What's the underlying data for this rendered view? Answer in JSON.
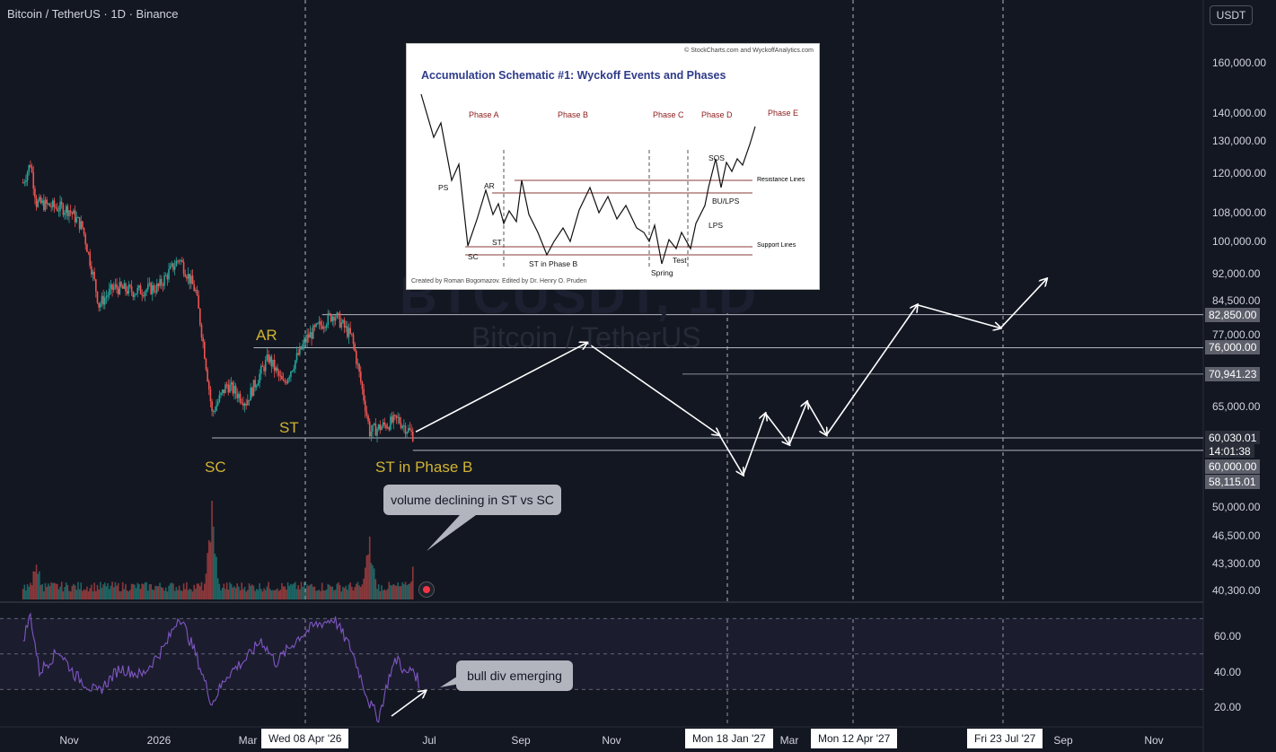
{
  "header": {
    "title": "Bitcoin / TetherUS · 1D · Binance",
    "unit_button": "USDT"
  },
  "watermark": {
    "symbol": "BTCUSDT, 1D",
    "name": "Bitcoin / TetherUS"
  },
  "inset": {
    "credit_top": "© StockCharts.com and WyckoffAnalytics.com",
    "title": "Accumulation Schematic #1: Wyckoff Events and Phases",
    "credit_bottom": "Created by Roman Bogomazov. Edited by Dr. Henry O. Pruden",
    "phases": [
      "Phase A",
      "Phase B",
      "Phase C",
      "Phase D",
      "Phase E"
    ],
    "events": {
      "ps": "PS",
      "sc": "SC",
      "ar": "AR",
      "st": "ST",
      "st_b": "ST in Phase B",
      "spring": "Spring",
      "test": "Test",
      "lps": "LPS",
      "sos": "SOS",
      "bu_lps": "BU/LPS"
    },
    "resistance": "Resistance Lines",
    "support": "Support Lines"
  },
  "annotations": {
    "ar": "AR",
    "st": "ST",
    "sc": "SC",
    "st_phase_b": "ST in Phase B",
    "volume_note": "volume declining in ST vs SC",
    "rsi_note": "bull div emerging"
  },
  "price_tags": {
    "p82850": "82,850.00",
    "p76000": "76,000.00",
    "p70941": "70,941.23",
    "p60030": "60,030.01",
    "countdown": "14:01:38",
    "p60000": "60,000.00",
    "p58115": "58,115.01"
  },
  "colors": {
    "background": "#131722",
    "candle_up": "#26a69a",
    "candle_down": "#ef5350",
    "label_gold": "#d1b431",
    "rsi_line": "#7e57c2",
    "callout_bg": "#b2b5be"
  },
  "chart_data": [
    {
      "type": "candlestick",
      "title": "Bitcoin / TetherUS · 1D · Binance",
      "scale": "log",
      "ylim": [
        38000,
        175000
      ],
      "y_ticks": [
        "160,000.00",
        "140,000.00",
        "130,000.00",
        "120,000.00",
        "108,000.00",
        "100,000.00",
        "92,000.00",
        "84,500.00",
        "77,000.00",
        "65,000.00",
        "50,000.00",
        "46,500.00",
        "43,300.00",
        "40,300.00"
      ],
      "x_ticks": [
        "Nov",
        "2026",
        "Mar",
        "Jul",
        "Sep",
        "Nov",
        "Mar",
        "Sep",
        "Nov"
      ],
      "highlighted_dates": [
        "Wed 08 Apr '26",
        "Mon 18 Jan '27",
        "Mon 12 Apr '27",
        "Fri 23 Jul '27"
      ],
      "levels": [
        82850,
        76000,
        70941.23,
        60030.01,
        60000,
        58115.01
      ],
      "close_path": [
        [
          "2025-10-01",
          117000
        ],
        [
          "2025-10-06",
          123000
        ],
        [
          "2025-10-10",
          111000
        ],
        [
          "2025-10-20",
          110000
        ],
        [
          "2025-11-01",
          109000
        ],
        [
          "2025-11-10",
          104000
        ],
        [
          "2025-11-21",
          85000
        ],
        [
          "2025-12-01",
          89000
        ],
        [
          "2025-12-15",
          88000
        ],
        [
          "2025-12-31",
          89000
        ],
        [
          "2026-01-14",
          96000
        ],
        [
          "2026-01-25",
          88000
        ],
        [
          "2026-02-05",
          64000
        ],
        [
          "2026-02-15",
          69000
        ],
        [
          "2026-02-28",
          66000
        ],
        [
          "2026-03-15",
          74000
        ],
        [
          "2026-03-25",
          69000
        ],
        [
          "2026-04-10",
          78000
        ],
        [
          "2026-04-20",
          81000
        ],
        [
          "2026-04-28",
          83000
        ],
        [
          "2026-05-10",
          78000
        ],
        [
          "2026-05-22",
          61000
        ],
        [
          "2026-06-10",
          63000
        ],
        [
          "2026-06-20",
          60500
        ]
      ],
      "projection": [
        [
          "2026-06-22",
          61000
        ],
        [
          "2026-10-15",
          77000
        ],
        [
          "2027-01-12",
          60500
        ],
        [
          "2027-01-28",
          54500
        ],
        [
          "2027-02-12",
          64000
        ],
        [
          "2027-02-28",
          59000
        ],
        [
          "2027-03-12",
          66000
        ],
        [
          "2027-03-25",
          60500
        ],
        [
          "2027-05-25",
          85000
        ],
        [
          "2027-07-20",
          80000
        ],
        [
          "2027-08-20",
          91000
        ]
      ],
      "events": [
        {
          "label": "AR",
          "x": "2026-03-02",
          "y": 76000
        },
        {
          "label": "ST",
          "x": "2026-03-05",
          "y": 62000
        },
        {
          "label": "SC",
          "x": "2026-02-05",
          "y": 56000
        },
        {
          "label": "ST in Phase B",
          "x": "2026-06-20",
          "y": 56000
        }
      ]
    },
    {
      "type": "bar",
      "title": "Volume",
      "note": "volume declining in ST vs SC",
      "peaks": [
        {
          "x": "2025-10-10",
          "rel": 0.45
        },
        {
          "x": "2026-02-05",
          "rel": 1.0
        },
        {
          "x": "2026-05-22",
          "rel": 0.7
        },
        {
          "x": "2026-06-20",
          "rel": 0.35
        }
      ]
    },
    {
      "type": "line",
      "title": "RSI",
      "ylim": [
        10,
        80
      ],
      "y_ticks": [
        "60.00",
        "40.00",
        "20.00"
      ],
      "bands": [
        70,
        50,
        30
      ],
      "points": [
        [
          "2025-10-01",
          58
        ],
        [
          "2025-10-06",
          72
        ],
        [
          "2025-10-12",
          40
        ],
        [
          "2025-10-25",
          52
        ],
        [
          "2025-11-05",
          38
        ],
        [
          "2025-11-20",
          28
        ],
        [
          "2025-12-05",
          42
        ],
        [
          "2025-12-20",
          38
        ],
        [
          "2026-01-05",
          55
        ],
        [
          "2026-01-14",
          72
        ],
        [
          "2026-01-25",
          50
        ],
        [
          "2026-02-05",
          22
        ],
        [
          "2026-02-15",
          38
        ],
        [
          "2026-03-01",
          48
        ],
        [
          "2026-03-10",
          58
        ],
        [
          "2026-03-20",
          45
        ],
        [
          "2026-04-05",
          60
        ],
        [
          "2026-04-15",
          66
        ],
        [
          "2026-04-28",
          70
        ],
        [
          "2026-05-10",
          52
        ],
        [
          "2026-05-22",
          22
        ],
        [
          "2026-05-28",
          14
        ],
        [
          "2026-06-05",
          40
        ],
        [
          "2026-06-10",
          48
        ],
        [
          "2026-06-15",
          38
        ],
        [
          "2026-06-20",
          42
        ],
        [
          "2026-06-24",
          34
        ]
      ]
    }
  ]
}
